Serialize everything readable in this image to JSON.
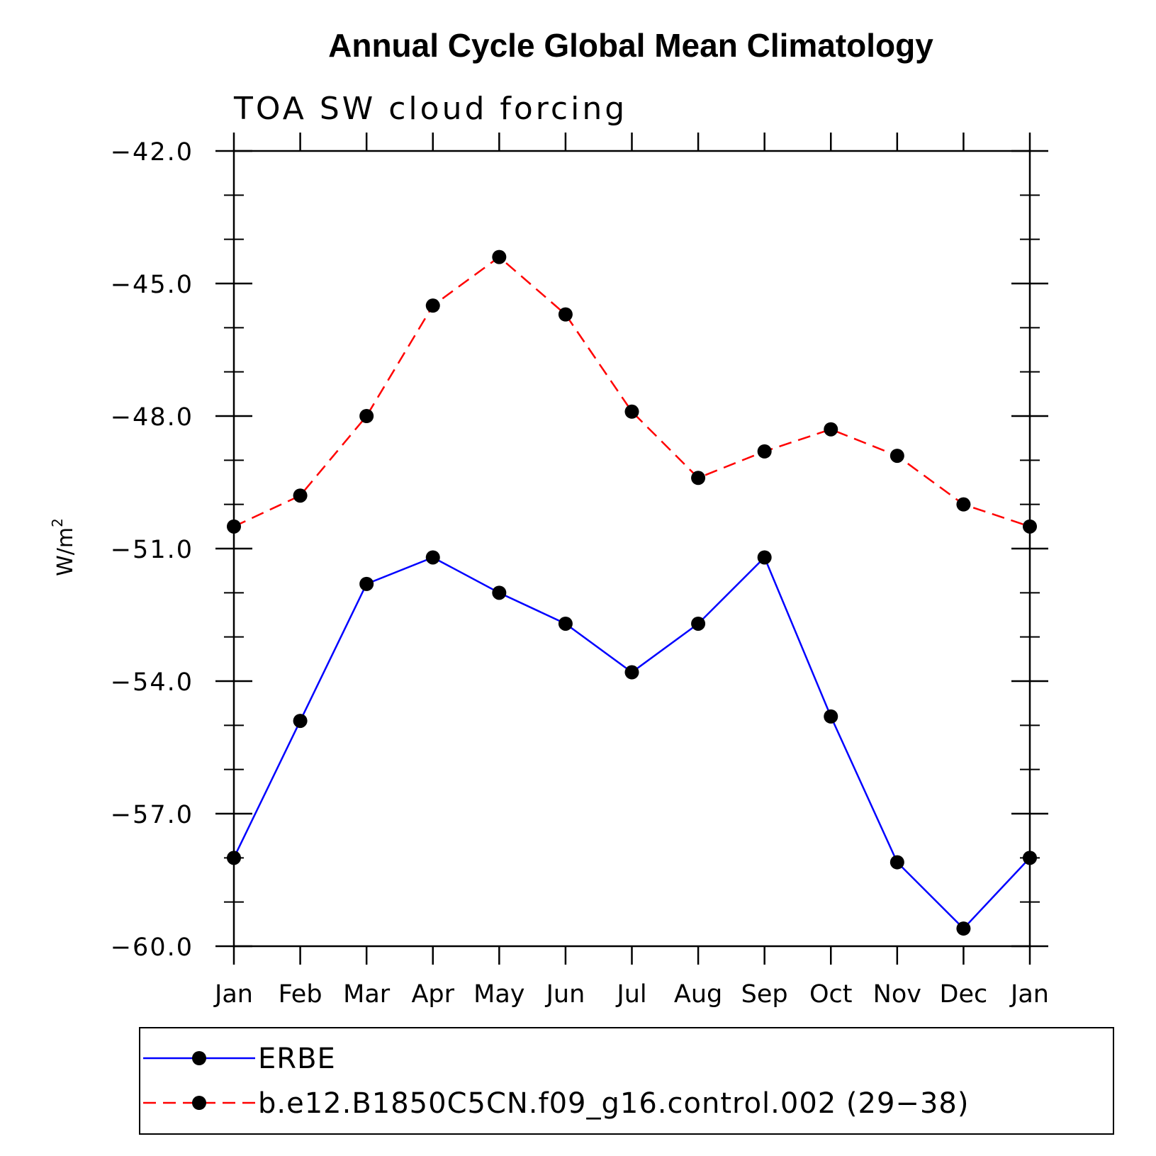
{
  "chart_data": {
    "type": "line",
    "title": "Annual Cycle Global Mean Climatology",
    "subtitle": "TOA SW cloud forcing",
    "ylabel": "W/m",
    "ylabel_superscript": "2",
    "categories": [
      "Jan",
      "Feb",
      "Mar",
      "Apr",
      "May",
      "Jun",
      "Jul",
      "Aug",
      "Sep",
      "Oct",
      "Nov",
      "Dec",
      "Jan"
    ],
    "ylim": [
      -60.0,
      -42.0
    ],
    "yticks": [
      "-42.0",
      "-45.0",
      "-48.0",
      "-51.0",
      "-54.0",
      "-57.0",
      "-60.0"
    ],
    "series": [
      {
        "name": "ERBE",
        "color": "#0000ff",
        "dash": "solid",
        "values": [
          -58.0,
          -54.9,
          -51.8,
          -51.2,
          -52.0,
          -52.7,
          -53.8,
          -52.7,
          -51.2,
          -54.8,
          -58.1,
          -59.6,
          -58.0
        ]
      },
      {
        "name": "b.e12.B1850C5CN.f09_g16.control.002 (29−38)",
        "color": "#ff0000",
        "dash": "dashed",
        "values": [
          -50.5,
          -49.8,
          -48.0,
          -45.5,
          -44.4,
          -45.7,
          -47.9,
          -49.4,
          -48.8,
          -48.3,
          -48.9,
          -50.0,
          -50.5
        ]
      }
    ],
    "grid": false,
    "legend_position": "bottom"
  }
}
